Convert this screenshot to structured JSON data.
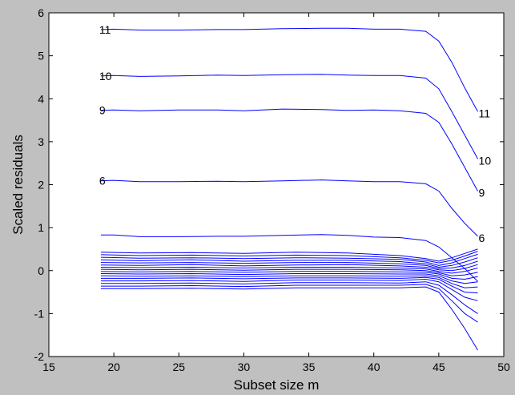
{
  "chart_data": {
    "type": "line",
    "title": "",
    "xlabel": "Subset size m",
    "ylabel": "Scaled residuals",
    "xlim": [
      15,
      50
    ],
    "ylim": [
      -2,
      6
    ],
    "xticks": [
      15,
      20,
      25,
      30,
      35,
      40,
      45,
      50
    ],
    "yticks": [
      -2,
      -1,
      0,
      1,
      2,
      3,
      4,
      5,
      6
    ],
    "grid": false,
    "legend": "none",
    "colors": {
      "line": "#0000ff",
      "plot_bg": "#ffffff",
      "figure_bg": "#c0c0c0",
      "text": "#000000"
    },
    "series": [
      {
        "x": [
          19,
          20,
          22,
          25,
          28,
          30,
          33,
          36,
          38,
          40,
          42,
          44,
          45,
          46,
          47,
          48
        ],
        "values": [
          5.61,
          5.62,
          5.6,
          5.6,
          5.61,
          5.61,
          5.63,
          5.64,
          5.64,
          5.62,
          5.62,
          5.57,
          5.34,
          4.85,
          4.25,
          3.7
        ]
      },
      {
        "x": [
          19,
          20,
          22,
          25,
          28,
          30,
          33,
          36,
          38,
          40,
          42,
          44,
          45,
          46,
          47,
          48
        ],
        "values": [
          4.53,
          4.54,
          4.52,
          4.53,
          4.55,
          4.54,
          4.56,
          4.57,
          4.55,
          4.54,
          4.54,
          4.48,
          4.23,
          3.7,
          3.15,
          2.6
        ]
      },
      {
        "x": [
          19,
          20,
          22,
          25,
          28,
          30,
          33,
          36,
          38,
          40,
          42,
          44,
          45,
          46,
          47,
          48
        ],
        "values": [
          3.73,
          3.74,
          3.72,
          3.74,
          3.74,
          3.72,
          3.76,
          3.75,
          3.73,
          3.74,
          3.72,
          3.66,
          3.45,
          2.95,
          2.4,
          1.85
        ]
      },
      {
        "x": [
          19,
          20,
          22,
          25,
          28,
          30,
          33,
          36,
          38,
          40,
          42,
          44,
          45,
          46,
          47,
          48
        ],
        "values": [
          2.09,
          2.1,
          2.07,
          2.07,
          2.08,
          2.07,
          2.09,
          2.11,
          2.09,
          2.07,
          2.07,
          2.02,
          1.85,
          1.45,
          1.1,
          0.8
        ]
      },
      {
        "x": [
          19,
          20,
          22,
          25,
          28,
          30,
          33,
          36,
          38,
          40,
          42,
          44,
          45,
          46,
          47,
          48
        ],
        "values": [
          0.83,
          0.83,
          0.79,
          0.79,
          0.8,
          0.8,
          0.82,
          0.84,
          0.82,
          0.78,
          0.77,
          0.7,
          0.55,
          0.3,
          0.05,
          -0.25
        ]
      },
      {
        "x": [
          19,
          22,
          26,
          30,
          34,
          38,
          42,
          44,
          45,
          46,
          47,
          48
        ],
        "values": [
          0.43,
          0.41,
          0.42,
          0.4,
          0.43,
          0.41,
          0.35,
          0.28,
          0.22,
          0.3,
          0.4,
          0.5
        ]
      },
      {
        "x": [
          19,
          22,
          26,
          30,
          34,
          38,
          42,
          44,
          45,
          46,
          47,
          48
        ],
        "values": [
          0.37,
          0.35,
          0.36,
          0.34,
          0.36,
          0.35,
          0.3,
          0.24,
          0.18,
          0.24,
          0.34,
          0.45
        ]
      },
      {
        "x": [
          19,
          22,
          26,
          30,
          34,
          38,
          42,
          44,
          45,
          46,
          47,
          48
        ],
        "values": [
          0.31,
          0.29,
          0.3,
          0.28,
          0.3,
          0.29,
          0.26,
          0.2,
          0.12,
          0.18,
          0.28,
          0.38
        ]
      },
      {
        "x": [
          19,
          22,
          26,
          30,
          34,
          38,
          42,
          44,
          45,
          46,
          47,
          48
        ],
        "values": [
          0.25,
          0.23,
          0.25,
          0.22,
          0.24,
          0.24,
          0.21,
          0.16,
          0.08,
          0.12,
          0.2,
          0.3
        ]
      },
      {
        "x": [
          19,
          22,
          26,
          30,
          34,
          38,
          42,
          44,
          45,
          46,
          47,
          48
        ],
        "values": [
          0.19,
          0.18,
          0.19,
          0.17,
          0.19,
          0.19,
          0.16,
          0.12,
          0.05,
          0.06,
          0.12,
          0.22
        ]
      },
      {
        "x": [
          19,
          22,
          26,
          30,
          34,
          38,
          42,
          44,
          45,
          46,
          47,
          48
        ],
        "values": [
          0.13,
          0.12,
          0.14,
          0.11,
          0.13,
          0.14,
          0.11,
          0.08,
          0.02,
          0.0,
          0.05,
          0.14
        ]
      },
      {
        "x": [
          19,
          22,
          26,
          30,
          34,
          38,
          42,
          44,
          45,
          46,
          47,
          48
        ],
        "values": [
          0.08,
          0.07,
          0.08,
          0.06,
          0.08,
          0.08,
          0.06,
          0.04,
          -0.02,
          -0.06,
          -0.02,
          0.06
        ]
      },
      {
        "x": [
          19,
          22,
          26,
          30,
          34,
          38,
          42,
          44,
          45,
          46,
          47,
          48
        ],
        "values": [
          0.03,
          0.02,
          0.03,
          0.01,
          0.03,
          0.03,
          0.02,
          0.0,
          -0.05,
          -0.12,
          -0.1,
          -0.04
        ]
      },
      {
        "x": [
          19,
          22,
          26,
          30,
          34,
          38,
          42,
          44,
          45,
          46,
          47,
          48
        ],
        "values": [
          -0.02,
          -0.03,
          -0.02,
          -0.04,
          -0.02,
          -0.02,
          -0.03,
          -0.04,
          -0.08,
          -0.18,
          -0.2,
          -0.14
        ]
      },
      {
        "x": [
          19,
          22,
          26,
          30,
          34,
          38,
          42,
          44,
          45,
          46,
          47,
          48
        ],
        "values": [
          -0.07,
          -0.08,
          -0.07,
          -0.09,
          -0.07,
          -0.07,
          -0.08,
          -0.08,
          -0.12,
          -0.24,
          -0.3,
          -0.26
        ]
      },
      {
        "x": [
          19,
          22,
          26,
          30,
          34,
          38,
          42,
          44,
          45,
          46,
          47,
          48
        ],
        "values": [
          -0.12,
          -0.13,
          -0.12,
          -0.14,
          -0.12,
          -0.12,
          -0.13,
          -0.12,
          -0.16,
          -0.3,
          -0.4,
          -0.38
        ]
      },
      {
        "x": [
          19,
          22,
          26,
          30,
          34,
          38,
          42,
          44,
          45,
          46,
          47,
          48
        ],
        "values": [
          -0.18,
          -0.18,
          -0.17,
          -0.19,
          -0.17,
          -0.17,
          -0.18,
          -0.16,
          -0.2,
          -0.36,
          -0.5,
          -0.52
        ]
      },
      {
        "x": [
          19,
          22,
          26,
          30,
          34,
          38,
          42,
          44,
          45,
          46,
          47,
          48
        ],
        "values": [
          -0.24,
          -0.24,
          -0.23,
          -0.25,
          -0.22,
          -0.22,
          -0.23,
          -0.2,
          -0.26,
          -0.44,
          -0.62,
          -0.7
        ]
      },
      {
        "x": [
          19,
          22,
          26,
          30,
          34,
          38,
          42,
          44,
          45,
          46,
          47,
          48
        ],
        "values": [
          -0.3,
          -0.3,
          -0.29,
          -0.31,
          -0.28,
          -0.28,
          -0.29,
          -0.26,
          -0.34,
          -0.56,
          -0.8,
          -1.0
        ]
      },
      {
        "x": [
          19,
          22,
          26,
          30,
          34,
          38,
          42,
          44,
          45,
          46,
          47,
          48
        ],
        "values": [
          -0.36,
          -0.36,
          -0.35,
          -0.37,
          -0.34,
          -0.34,
          -0.34,
          -0.32,
          -0.42,
          -0.7,
          -1.0,
          -1.2
        ]
      },
      {
        "x": [
          19,
          22,
          26,
          30,
          34,
          38,
          42,
          44,
          45,
          46,
          47,
          48
        ],
        "values": [
          -0.42,
          -0.42,
          -0.41,
          -0.43,
          -0.4,
          -0.4,
          -0.4,
          -0.38,
          -0.5,
          -0.9,
          -1.35,
          -1.85
        ]
      }
    ],
    "annotations": [
      {
        "text": "11",
        "x": 19,
        "y": 5.61
      },
      {
        "text": "10",
        "x": 19,
        "y": 4.53
      },
      {
        "text": "9",
        "x": 19,
        "y": 3.73
      },
      {
        "text": "6",
        "x": 19,
        "y": 2.09
      },
      {
        "text": "11",
        "x": 48,
        "y": 3.7
      },
      {
        "text": "10",
        "x": 48,
        "y": 2.6
      },
      {
        "text": "9",
        "x": 48,
        "y": 1.85
      },
      {
        "text": "6",
        "x": 48,
        "y": 0.8
      }
    ]
  }
}
